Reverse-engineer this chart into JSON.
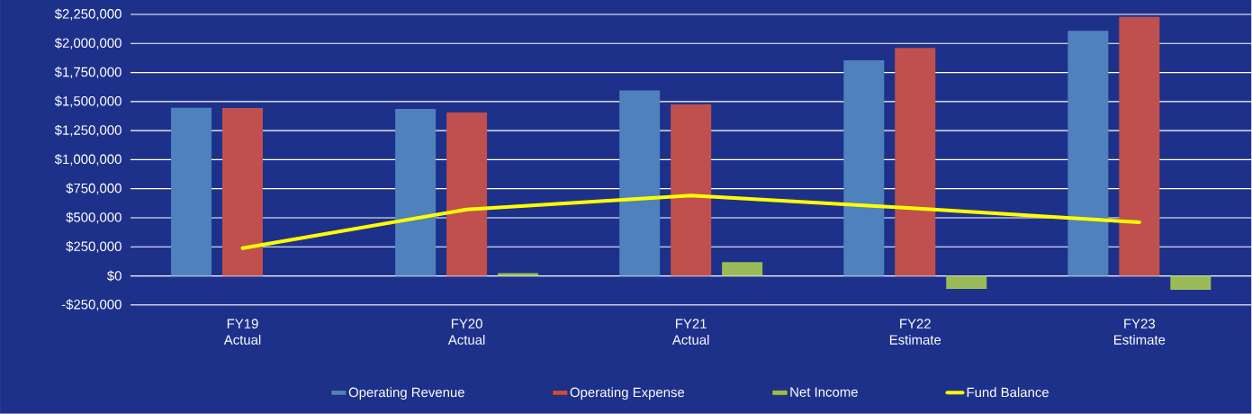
{
  "chart_data": {
    "type": "bar",
    "categories": [
      "FY19 Actual",
      "FY20 Actual",
      "FY21 Actual",
      "FY22 Estimate",
      "FY23 Estimate"
    ],
    "series": [
      {
        "name": "Operating Revenue",
        "color": "#4f81bd",
        "values": [
          1447000,
          1437000,
          1596000,
          1854000,
          2108000
        ]
      },
      {
        "name": "Operating Expense",
        "color": "#c0504d",
        "values": [
          1444000,
          1406000,
          1475000,
          1962000,
          2228000
        ]
      },
      {
        "name": "Net Income",
        "color": "#9bbb59",
        "values": [
          0,
          24000,
          118000,
          -111000,
          -120000
        ]
      },
      {
        "name": "Fund Balance",
        "type": "line",
        "color": "#ffff00",
        "values": [
          239000,
          571000,
          692000,
          582000,
          462000
        ]
      }
    ],
    "ylim": [
      -250000,
      2250000
    ],
    "yticks": [
      {
        "value": -250000,
        "label": "-$250,000"
      },
      {
        "value": 0,
        "label": "$0"
      },
      {
        "value": 250000,
        "label": "$250,000"
      },
      {
        "value": 500000,
        "label": "$500,000"
      },
      {
        "value": 750000,
        "label": "$750,000"
      },
      {
        "value": 1000000,
        "label": "$1,000,000"
      },
      {
        "value": 1250000,
        "label": "$1,250,000"
      },
      {
        "value": 1500000,
        "label": "$1,500,000"
      },
      {
        "value": 1750000,
        "label": "$1,750,000"
      },
      {
        "value": 2000000,
        "label": "$2,000,000"
      },
      {
        "value": 2250000,
        "label": "$2,250,000"
      }
    ],
    "grid": "y",
    "legend": "bottom"
  }
}
